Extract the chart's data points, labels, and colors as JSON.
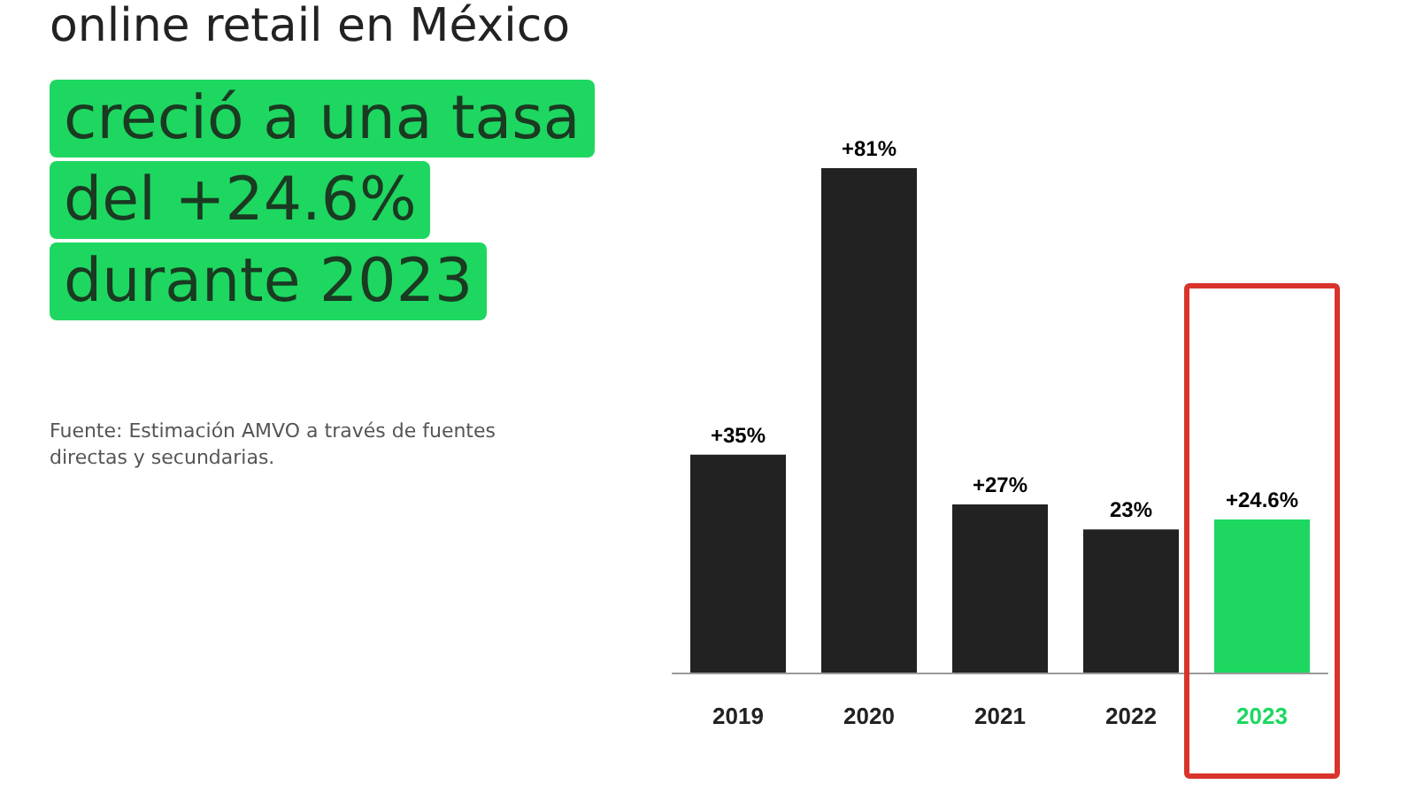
{
  "chart_data": {
    "type": "bar",
    "title": "online retail en México",
    "subtitle": "creció a una tasa del +24.6% durante 2023",
    "categories": [
      "2019",
      "2020",
      "2021",
      "2022",
      "2023"
    ],
    "values": [
      35,
      81,
      27,
      23,
      24.6
    ],
    "colors": [
      "#222222",
      "#222222",
      "#222222",
      "#222222",
      "#1ed760"
    ],
    "value_labels": [
      "+35%",
      "+81%",
      "+27%",
      "23%",
      "+24.6%"
    ],
    "annotations": [
      "Fuente: Estimación AMVO a través de fuentes directas y secundarias."
    ]
  }
}
